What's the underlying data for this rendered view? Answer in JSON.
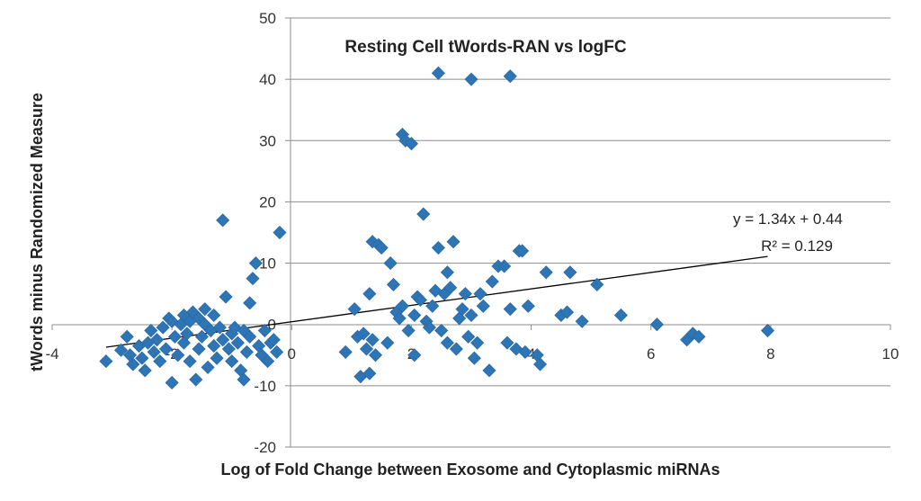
{
  "chart_data": {
    "type": "scatter",
    "title": "Resting Cell tWords-RAN vs logFC",
    "xlabel": "Log of Fold Change between Exosome and Cytoplasmic miRNAs",
    "ylabel": "tWords minus Randomized Measure",
    "xlim": [
      -4,
      10
    ],
    "ylim": [
      -20,
      50
    ],
    "x_ticks": [
      -4,
      -2,
      0,
      2,
      4,
      6,
      8,
      10
    ],
    "y_ticks": [
      -20,
      -10,
      0,
      10,
      20,
      30,
      40,
      50
    ],
    "x_tick_labels": [
      "-4",
      "-2",
      "0",
      "2",
      "4",
      "6",
      "8",
      "10"
    ],
    "y_tick_labels": [
      "-20",
      "-10",
      "0",
      "10",
      "20",
      "30",
      "40",
      "50"
    ],
    "grid": "horizontal",
    "marker_color": "#2E75B6",
    "trendline": {
      "slope": 1.34,
      "intercept": 0.44,
      "x_range": [
        -3.1,
        7.95
      ],
      "color": "#000000",
      "equation": "y = 1.34x + 0.44",
      "r_squared": "R² = 0.129"
    },
    "series": [
      {
        "points": [
          [
            -3.1,
            -6
          ],
          [
            -2.85,
            -4.2
          ],
          [
            -2.75,
            -2
          ],
          [
            -2.7,
            -5
          ],
          [
            -2.65,
            -6.5
          ],
          [
            -2.55,
            -3.5
          ],
          [
            -2.5,
            -5.5
          ],
          [
            -2.45,
            -7.5
          ],
          [
            -2.4,
            -3
          ],
          [
            -2.35,
            -1
          ],
          [
            -2.3,
            -4.5
          ],
          [
            -2.25,
            -2.5
          ],
          [
            -2.2,
            -6
          ],
          [
            -2.15,
            -0.5
          ],
          [
            -2.1,
            -4
          ],
          [
            -2.05,
            1
          ],
          [
            -2.0,
            -9.5
          ],
          [
            -2.0,
            0.5
          ],
          [
            -1.95,
            -2
          ],
          [
            -1.9,
            -5
          ],
          [
            -1.85,
            0
          ],
          [
            -1.8,
            1.5
          ],
          [
            -1.8,
            -3
          ],
          [
            -1.75,
            -1.5
          ],
          [
            -1.7,
            0.5
          ],
          [
            -1.7,
            -6
          ],
          [
            -1.65,
            2
          ],
          [
            -1.6,
            -9
          ],
          [
            -1.55,
            1
          ],
          [
            -1.55,
            -4
          ],
          [
            -1.5,
            -2
          ],
          [
            -1.45,
            0
          ],
          [
            -1.45,
            2.5
          ],
          [
            -1.4,
            -7
          ],
          [
            -1.35,
            -1
          ],
          [
            -1.3,
            1.5
          ],
          [
            -1.3,
            -3.5
          ],
          [
            -1.25,
            -5.5
          ],
          [
            -1.2,
            -0.5
          ],
          [
            -1.15,
            -2.5
          ],
          [
            -1.15,
            17
          ],
          [
            -1.1,
            4.5
          ],
          [
            -1.05,
            -4
          ],
          [
            -1.0,
            -1.5
          ],
          [
            -1.0,
            -6
          ],
          [
            -0.95,
            -0.5
          ],
          [
            -0.9,
            -3
          ],
          [
            -0.85,
            -7.5
          ],
          [
            -0.8,
            -1
          ],
          [
            -0.8,
            -9
          ],
          [
            -0.75,
            -4.5
          ],
          [
            -0.7,
            -2
          ],
          [
            -0.7,
            3.5
          ],
          [
            -0.65,
            7.5
          ],
          [
            -0.6,
            10
          ],
          [
            -0.55,
            -3.5
          ],
          [
            -0.5,
            -5
          ],
          [
            -0.45,
            -1
          ],
          [
            -0.4,
            -6
          ],
          [
            -0.35,
            -3
          ],
          [
            -0.3,
            -2.5
          ],
          [
            -0.25,
            -4.5
          ],
          [
            -0.2,
            15
          ],
          [
            0.9,
            -4.5
          ],
          [
            1.05,
            2.5
          ],
          [
            1.1,
            -2
          ],
          [
            1.15,
            -8.5
          ],
          [
            1.2,
            -1.5
          ],
          [
            1.25,
            -4
          ],
          [
            1.3,
            -8
          ],
          [
            1.3,
            5
          ],
          [
            1.35,
            -2.5
          ],
          [
            1.35,
            13.5
          ],
          [
            1.4,
            -5
          ],
          [
            1.45,
            13
          ],
          [
            1.5,
            12.5
          ],
          [
            1.6,
            -3
          ],
          [
            1.65,
            10
          ],
          [
            1.7,
            6.5
          ],
          [
            1.75,
            2
          ],
          [
            1.8,
            1
          ],
          [
            1.85,
            31
          ],
          [
            1.85,
            3
          ],
          [
            1.9,
            30
          ],
          [
            1.95,
            -1
          ],
          [
            2.0,
            29.5
          ],
          [
            2.05,
            -5
          ],
          [
            2.05,
            1.5
          ],
          [
            2.1,
            4.5
          ],
          [
            2.15,
            4
          ],
          [
            2.2,
            18
          ],
          [
            2.25,
            0.5
          ],
          [
            2.3,
            -0.5
          ],
          [
            2.35,
            3
          ],
          [
            2.4,
            5.5
          ],
          [
            2.45,
            12.5
          ],
          [
            2.5,
            -1
          ],
          [
            2.55,
            5
          ],
          [
            2.6,
            8.5
          ],
          [
            2.6,
            -3
          ],
          [
            2.65,
            6
          ],
          [
            2.7,
            13.5
          ],
          [
            2.75,
            -4
          ],
          [
            2.8,
            1
          ],
          [
            2.85,
            2.5
          ],
          [
            2.9,
            5
          ],
          [
            2.95,
            -2
          ],
          [
            3.0,
            1.5
          ],
          [
            3.05,
            -5.5
          ],
          [
            3.1,
            -3
          ],
          [
            3.15,
            5
          ],
          [
            3.2,
            3
          ],
          [
            3.3,
            -7.5
          ],
          [
            3.35,
            7
          ],
          [
            3.45,
            9.5
          ],
          [
            3.55,
            9.5
          ],
          [
            3.6,
            -3
          ],
          [
            3.65,
            2.5
          ],
          [
            3.75,
            -4
          ],
          [
            3.8,
            12
          ],
          [
            3.85,
            12
          ],
          [
            3.9,
            -4.5
          ],
          [
            3.95,
            3
          ],
          [
            4.1,
            -5
          ],
          [
            4.15,
            -6.5
          ],
          [
            4.25,
            8.5
          ],
          [
            4.5,
            1.5
          ],
          [
            4.6,
            2
          ],
          [
            4.65,
            8.5
          ],
          [
            4.85,
            0.5
          ],
          [
            5.1,
            6.5
          ],
          [
            5.5,
            1.5
          ],
          [
            6.1,
            0
          ],
          [
            6.6,
            -2.5
          ],
          [
            6.7,
            -1.5
          ],
          [
            6.8,
            -2
          ],
          [
            7.95,
            -1
          ],
          [
            2.45,
            41
          ],
          [
            3.0,
            40
          ],
          [
            3.65,
            40.5
          ]
        ]
      }
    ]
  }
}
